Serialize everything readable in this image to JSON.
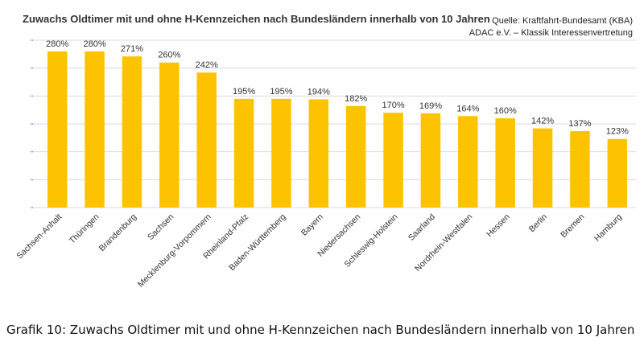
{
  "chart_title": "Zuwachs Oldtimer mit und ohne H-Kennzeichen nach Bundesländern innerhalb von 10 Jahren",
  "source": {
    "line1": "Quelle: Kraftfahrt-Bundesamt (KBA)",
    "line2": "ADAC e.V. – Klassik Interessenvertretung"
  },
  "caption": "Grafik 10: Zuwachs Oldtimer mit und ohne H-Kennzeichen nach Bundesländern innerhalb von 10 Jahren",
  "colors": {
    "bar": "#FDC300",
    "grid": "#d9d9d9",
    "label": "#333333"
  },
  "chart_data": {
    "type": "bar",
    "title": "Zuwachs Oldtimer mit und ohne H-Kennzeichen nach Bundesländern innerhalb von 10 Jahren",
    "xlabel": "",
    "ylabel": "",
    "ylim": [
      0,
      300
    ],
    "grid": true,
    "value_suffix": "%",
    "categories": [
      "Sachsen-Anhalt",
      "Thüringen",
      "Brandenburg",
      "Sachsen",
      "Mecklenburg-Vorpommern",
      "Rheinland-Pfalz",
      "Baden-Württemberg",
      "Bayern",
      "Niedersachsen",
      "Schleswig-Holstein",
      "Saarland",
      "Nordrhein-Westfalen",
      "Hessen",
      "Berlin",
      "Bremen",
      "Hamburg"
    ],
    "values": [
      280,
      280,
      271,
      260,
      242,
      195,
      195,
      194,
      182,
      170,
      169,
      164,
      160,
      142,
      137,
      123
    ],
    "data_labels": [
      "280%",
      "280%",
      "271%",
      "260%",
      "242%",
      "195%",
      "195%",
      "194%",
      "182%",
      "170%",
      "169%",
      "164%",
      "160%",
      "142%",
      "137%",
      "123%"
    ]
  }
}
